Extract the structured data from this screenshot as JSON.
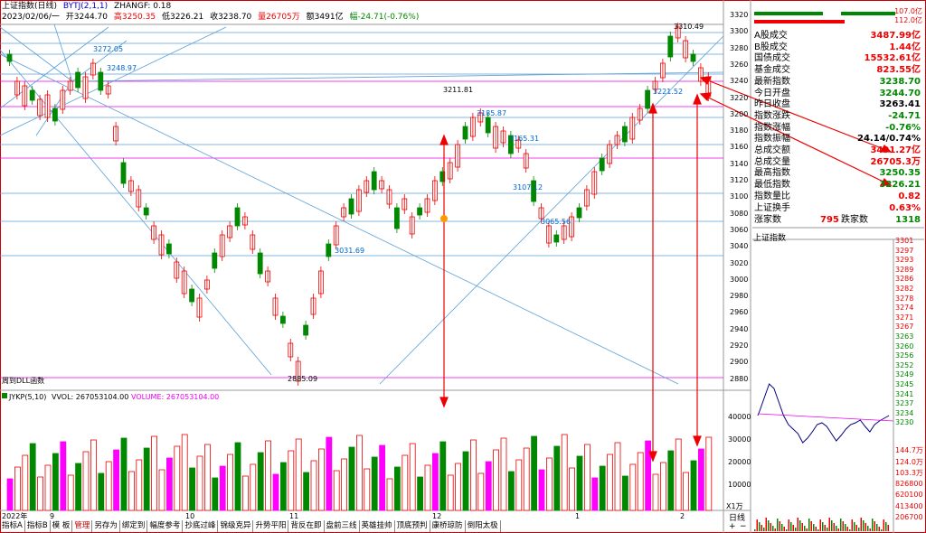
{
  "header": {
    "line1": {
      "name": "上证指数(日线)",
      "indicator": "BYTJ(2,1,1)",
      "zhangf": "ZHANGF: 0.18"
    },
    "line2": {
      "date": "2023/02/06/一",
      "open": "开3244.70",
      "high": "高3250.35",
      "low": "低3226.21",
      "close": "收3238.70",
      "vol": "量26705万",
      "amount": "额3491亿",
      "change": "幅-24.71(-0.76%)"
    }
  },
  "price_axis": [
    "3320",
    "3300",
    "3280",
    "3260",
    "3240",
    "3220",
    "3200",
    "3180",
    "3160",
    "3140",
    "3120",
    "3100",
    "3080",
    "3060",
    "3040",
    "3020",
    "3000",
    "2980",
    "2960",
    "2940",
    "2920",
    "2900",
    "2880"
  ],
  "chart_labels": {
    "p3272": "3272.05",
    "p3248": "3248.97",
    "p3211": "3211.81",
    "p3185": "3185.87",
    "p3165": "3165.31",
    "p3107": "3107.12",
    "p3065": "3065.56",
    "p3031": "3031.69",
    "p2885": "2885.09",
    "p3310": "3310.49",
    "p3221": "3221.52",
    "dll": "周到DLL函数"
  },
  "volume_panel": {
    "title": "JYKP(5,10)",
    "vvol": "VVOL: 267053104.00",
    "volume": "VOLUME: 267053104.00",
    "axis": [
      "40000",
      "30000",
      "20000",
      "10000"
    ],
    "unit": "X1万"
  },
  "x_axis": [
    "2022年",
    "9",
    "10",
    "11",
    "12",
    "1",
    "2"
  ],
  "info": {
    "bar1_val": "107.0亿",
    "bar2_val": "112.0亿",
    "rows": [
      {
        "label": "A股成交",
        "value": "3487.99亿",
        "color": "#e00"
      },
      {
        "label": "B股成交",
        "value": "1.44亿",
        "color": "#e00"
      },
      {
        "label": "国债成交",
        "value": "15532.61亿",
        "color": "#e00"
      },
      {
        "label": "基金成交",
        "value": "823.55亿",
        "color": "#e00"
      },
      {
        "label": "最新指数",
        "value": "3238.70",
        "color": "#080"
      },
      {
        "label": "今日开盘",
        "value": "3244.70",
        "color": "#080"
      },
      {
        "label": "昨日收盘",
        "value": "3263.41",
        "color": "#000"
      },
      {
        "label": "指数涨跌",
        "value": "-24.71",
        "color": "#080"
      },
      {
        "label": "指数涨幅",
        "value": "-0.76%",
        "color": "#080"
      },
      {
        "label": "指数振幅",
        "value": "24.14/0.74%",
        "color": "#000"
      },
      {
        "label": "总成交额",
        "value": "3491.27亿",
        "color": "#e00"
      },
      {
        "label": "总成交量",
        "value": "26705.3万",
        "color": "#e00"
      },
      {
        "label": "最高指数",
        "value": "3250.35",
        "color": "#080"
      },
      {
        "label": "最低指数",
        "value": "3226.21",
        "color": "#080"
      },
      {
        "label": "指数量比",
        "value": "0.82",
        "color": "#e00"
      },
      {
        "label": "上证换手",
        "value": "0.63%",
        "color": "#e00"
      }
    ],
    "up_label": "涨家数",
    "up_value": "795",
    "down_label": "跌家数",
    "down_value": "1318"
  },
  "mini_chart": {
    "title": "上证指数",
    "axis_left": [
      "3301",
      "3297",
      "3293",
      "3289",
      "3286",
      "3282",
      "3278",
      "3274",
      "3271",
      "3267",
      "3263",
      "3260",
      "3256",
      "3252",
      "3249",
      "3245",
      "3241",
      "3237",
      "3234",
      "3230"
    ],
    "vol_axis": [
      "144.7万",
      "124.0万",
      "103.3万",
      "826800",
      "620100",
      "413400",
      "206700"
    ]
  },
  "tabs": [
    "指标A",
    "指标B",
    "模 板",
    "管理",
    "另存为",
    "绑定到",
    "幅度参考",
    "抄底过峰",
    "锦级克异",
    "升势平阳",
    "背反在即",
    "盘前三线",
    "英雄挂帅",
    "顶底预判",
    "康桥琼防",
    "倒阳太极"
  ],
  "bottom_right": {
    "daily": "日线",
    "btn1": "+",
    "btn2": "−"
  }
}
